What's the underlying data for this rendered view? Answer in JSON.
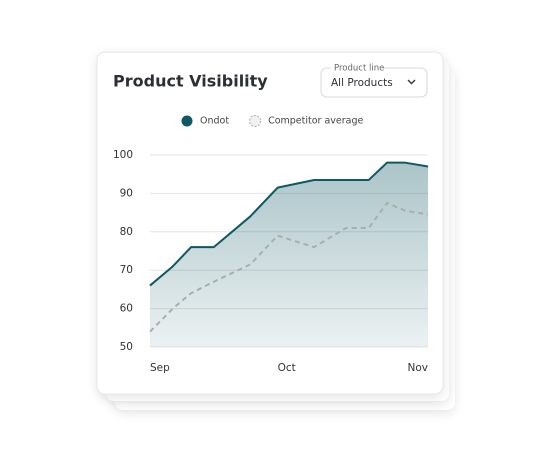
{
  "chart_data": {
    "type": "line",
    "title": "Product Visibility",
    "x": [
      0,
      5,
      9,
      14,
      22,
      28,
      36,
      43,
      48,
      52,
      56,
      61
    ],
    "xlim": [
      0,
      61
    ],
    "xticks": [
      {
        "value": 0,
        "label": "Sep"
      },
      {
        "value": 30,
        "label": "Oct"
      },
      {
        "value": 61,
        "label": "Nov"
      }
    ],
    "ylim": [
      50,
      100
    ],
    "yticks": [
      50,
      60,
      70,
      80,
      90,
      100
    ],
    "grid": true,
    "legend": "top",
    "series": [
      {
        "name": "Ondot",
        "color": "#0f5864",
        "area": true,
        "values": [
          66,
          71,
          76,
          76,
          84,
          91.5,
          93.5,
          93.5,
          93.5,
          98,
          98,
          97
        ]
      },
      {
        "name": "Competitor average",
        "color": "#a9aeae",
        "dashed": true,
        "values": [
          54,
          60,
          64,
          67,
          71.5,
          79,
          76,
          81,
          81,
          87.5,
          85.5,
          84.5
        ]
      }
    ]
  },
  "filter": {
    "label": "Product line",
    "value": "All Products"
  }
}
